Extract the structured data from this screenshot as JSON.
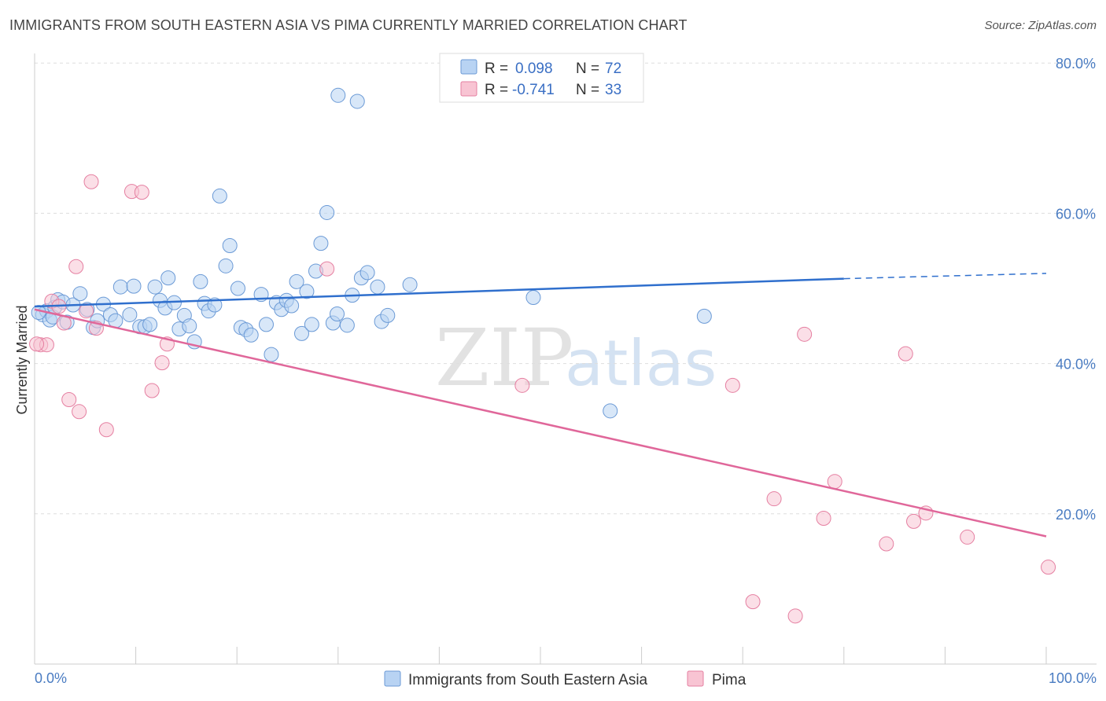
{
  "header": {
    "title": "IMMIGRANTS FROM SOUTH EASTERN ASIA VS PIMA CURRENTLY MARRIED CORRELATION CHART",
    "source": "Source: ZipAtlas.com"
  },
  "watermark": {
    "zip": "ZIP",
    "atlas": "atlas"
  },
  "colors": {
    "blue_fill": "#b8d3f3",
    "blue_stroke": "#6b9ad6",
    "blue_line": "#2f6fcd",
    "pink_fill": "#f8c4d3",
    "pink_stroke": "#e57fa1",
    "pink_line": "#e0679a",
    "grid": "#dddddd",
    "tick_label": "#4a7cc2"
  },
  "legend": {
    "rows": [
      {
        "r_label": "R = ",
        "r_value": "0.098",
        "n_label": "N = ",
        "n_value": "72"
      },
      {
        "r_label": "R = ",
        "r_value": "-0.741",
        "n_label": "N = ",
        "n_value": "33"
      }
    ]
  },
  "chart_data": {
    "type": "scatter",
    "title": "IMMIGRANTS FROM SOUTH EASTERN ASIA VS PIMA CURRENTLY MARRIED CORRELATION CHART",
    "xlabel": "",
    "ylabel": "Currently Married",
    "xlim": [
      0,
      100
    ],
    "ylim": [
      0,
      81
    ],
    "x_tick_labels": [
      "0.0%",
      "100.0%"
    ],
    "y_ticks": [
      20,
      40,
      60,
      80
    ],
    "y_tick_labels": [
      "20.0%",
      "40.0%",
      "60.0%",
      "80.0%"
    ],
    "grid": true,
    "legend_position": "top-center",
    "series": [
      {
        "name": "Immigrants from South Eastern Asia",
        "color": "#b8d3f3",
        "trend": {
          "x": [
            0,
            80
          ],
          "y": [
            47.6,
            51.3
          ],
          "dashed_to": [
            100,
            52.0
          ]
        },
        "points": [
          [
            0.8,
            46.5
          ],
          [
            1.2,
            47.0
          ],
          [
            1.5,
            45.8
          ],
          [
            1.8,
            46.2
          ],
          [
            2.0,
            47.5
          ],
          [
            2.3,
            48.5
          ],
          [
            2.8,
            48.2
          ],
          [
            3.2,
            45.5
          ],
          [
            3.8,
            47.8
          ],
          [
            4.5,
            49.3
          ],
          [
            5.2,
            47.2
          ],
          [
            5.8,
            44.8
          ],
          [
            6.2,
            45.7
          ],
          [
            6.8,
            47.9
          ],
          [
            7.5,
            46.5
          ],
          [
            8.0,
            45.7
          ],
          [
            8.5,
            50.2
          ],
          [
            9.4,
            46.5
          ],
          [
            9.8,
            50.3
          ],
          [
            10.4,
            44.9
          ],
          [
            10.9,
            44.9
          ],
          [
            11.4,
            45.2
          ],
          [
            11.9,
            50.2
          ],
          [
            12.4,
            48.4
          ],
          [
            12.9,
            47.4
          ],
          [
            13.2,
            51.4
          ],
          [
            13.8,
            48.1
          ],
          [
            14.3,
            44.6
          ],
          [
            14.8,
            46.4
          ],
          [
            15.3,
            45.0
          ],
          [
            15.8,
            42.9
          ],
          [
            16.4,
            50.9
          ],
          [
            16.8,
            48.0
          ],
          [
            17.2,
            47.0
          ],
          [
            17.8,
            47.8
          ],
          [
            18.3,
            62.3
          ],
          [
            18.9,
            53.0
          ],
          [
            19.3,
            55.7
          ],
          [
            20.1,
            50.0
          ],
          [
            20.4,
            44.8
          ],
          [
            20.9,
            44.5
          ],
          [
            21.4,
            43.8
          ],
          [
            22.4,
            49.2
          ],
          [
            22.9,
            45.2
          ],
          [
            23.4,
            41.2
          ],
          [
            23.9,
            48.1
          ],
          [
            24.4,
            47.2
          ],
          [
            24.9,
            48.4
          ],
          [
            25.4,
            47.7
          ],
          [
            25.9,
            50.9
          ],
          [
            26.4,
            44.0
          ],
          [
            26.9,
            49.6
          ],
          [
            27.4,
            45.2
          ],
          [
            27.8,
            52.3
          ],
          [
            28.3,
            56.0
          ],
          [
            28.9,
            60.1
          ],
          [
            29.5,
            45.4
          ],
          [
            29.9,
            46.6
          ],
          [
            30.0,
            75.7
          ],
          [
            30.9,
            45.1
          ],
          [
            31.4,
            49.1
          ],
          [
            31.9,
            74.9
          ],
          [
            32.3,
            51.4
          ],
          [
            32.9,
            52.1
          ],
          [
            33.9,
            50.2
          ],
          [
            34.3,
            45.6
          ],
          [
            34.9,
            46.4
          ],
          [
            37.1,
            50.5
          ],
          [
            49.3,
            48.8
          ],
          [
            56.9,
            33.7
          ],
          [
            66.2,
            46.3
          ],
          [
            0.4,
            46.8
          ]
        ]
      },
      {
        "name": "Pima",
        "color": "#f8c4d3",
        "trend": {
          "x": [
            0,
            100
          ],
          "y": [
            47.2,
            17.0
          ]
        },
        "points": [
          [
            0.6,
            42.5
          ],
          [
            1.2,
            42.5
          ],
          [
            1.7,
            48.3
          ],
          [
            2.4,
            47.6
          ],
          [
            2.9,
            45.4
          ],
          [
            3.4,
            35.2
          ],
          [
            4.1,
            52.9
          ],
          [
            4.4,
            33.6
          ],
          [
            5.1,
            47.0
          ],
          [
            5.6,
            64.2
          ],
          [
            6.1,
            44.7
          ],
          [
            7.1,
            31.2
          ],
          [
            9.6,
            62.9
          ],
          [
            10.6,
            62.8
          ],
          [
            11.6,
            36.4
          ],
          [
            12.6,
            40.1
          ],
          [
            13.1,
            42.6
          ],
          [
            28.9,
            52.6
          ],
          [
            48.2,
            37.1
          ],
          [
            69.0,
            37.1
          ],
          [
            71.0,
            8.3
          ],
          [
            73.1,
            22.0
          ],
          [
            75.2,
            6.4
          ],
          [
            76.1,
            43.9
          ],
          [
            78.0,
            19.4
          ],
          [
            79.1,
            24.3
          ],
          [
            84.2,
            16.0
          ],
          [
            86.1,
            41.3
          ],
          [
            86.9,
            19.0
          ],
          [
            88.1,
            20.1
          ],
          [
            92.2,
            16.9
          ],
          [
            100.2,
            12.9
          ],
          [
            0.2,
            42.6
          ]
        ]
      }
    ]
  },
  "bottom_legend": {
    "items": [
      {
        "label": "Immigrants from South Eastern Asia"
      },
      {
        "label": "Pima"
      }
    ]
  }
}
